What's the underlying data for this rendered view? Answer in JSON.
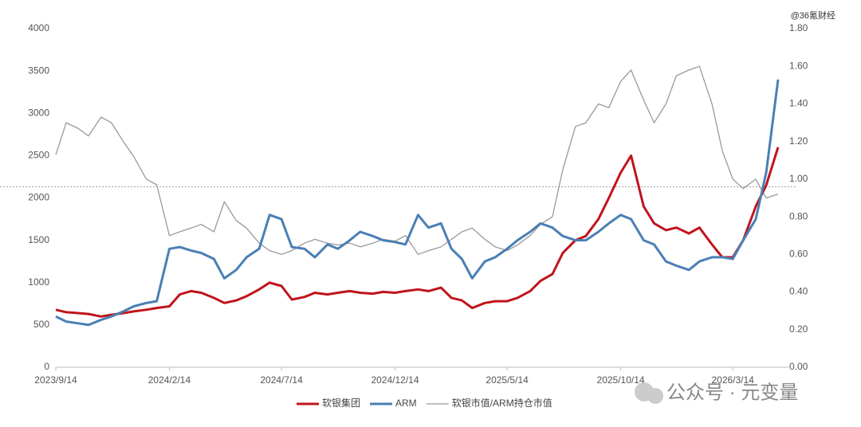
{
  "chart_data": {
    "type": "line",
    "x": [
      "2023/9/14",
      "2023/9/28",
      "2023/10/14",
      "2023/10/28",
      "2023/11/14",
      "2023/11/28",
      "2023/12/14",
      "2023/12/28",
      "2024/1/14",
      "2024/1/28",
      "2024/2/14",
      "2024/2/28",
      "2024/3/14",
      "2024/3/28",
      "2024/4/14",
      "2024/4/28",
      "2024/5/14",
      "2024/5/28",
      "2024/6/14",
      "2024/6/28",
      "2024/7/14",
      "2024/7/28",
      "2024/8/14",
      "2024/8/28",
      "2024/9/14",
      "2024/9/28",
      "2024/10/14",
      "2024/10/28",
      "2024/11/14",
      "2024/11/28",
      "2024/12/14",
      "2024/12/28",
      "2025/1/14",
      "2025/1/28",
      "2025/2/14",
      "2025/2/28",
      "2025/3/14",
      "2025/3/28",
      "2025/4/14",
      "2025/4/28",
      "2025/5/14",
      "2025/5/28",
      "2025/6/14",
      "2025/6/28",
      "2025/7/14",
      "2025/7/28",
      "2025/8/14",
      "2025/8/28",
      "2025/9/14",
      "2025/9/28",
      "2025/10/14",
      "2025/10/28",
      "2025/11/14",
      "2025/11/28",
      "2025/12/14",
      "2025/12/28",
      "2026/1/14",
      "2026/1/28",
      "2026/2/14",
      "2026/2/28",
      "2026/3/14",
      "2026/3/28",
      "2026/4/14",
      "2026/4/28",
      "2026/5/14"
    ],
    "xlim": [
      "2023/9/14",
      "2026/5/28"
    ],
    "xticks": [
      "2023/9/14",
      "2024/2/14",
      "2024/7/14",
      "2024/12/14",
      "2025/5/14",
      "2025/10/14",
      "2026/3/14"
    ],
    "ylim": [
      0,
      4000
    ],
    "yticks": [
      0,
      500,
      1000,
      1500,
      2000,
      2500,
      3000,
      3500,
      4000
    ],
    "y2lim": [
      0,
      1.8
    ],
    "y2ticks": [
      {
        "value": 0,
        "label": "0.00"
      },
      {
        "value": 0.2,
        "label": "0.20"
      },
      {
        "value": 0.4,
        "label": "0.40"
      },
      {
        "value": 0.6,
        "label": "0.60"
      },
      {
        "value": 0.8,
        "label": "0.80"
      },
      {
        "value": 1,
        "label": "1.00"
      },
      {
        "value": 1.2,
        "label": "1.20"
      },
      {
        "value": 1.4,
        "label": "1.40"
      },
      {
        "value": 1.6,
        "label": "1.60"
      },
      {
        "value": 1.8,
        "label": "1.80"
      }
    ],
    "reference_line": {
      "axis": "y2",
      "value": 0.96,
      "color": "#999999"
    },
    "series": [
      {
        "name": "软银集团",
        "color": "#c0141c",
        "width": 3,
        "values": [
          680,
          650,
          640,
          630,
          600,
          620,
          640,
          660,
          680,
          700,
          720,
          860,
          900,
          880,
          820,
          760,
          790,
          840,
          920,
          1000,
          960,
          800,
          830,
          880,
          860,
          880,
          900,
          880,
          870,
          890,
          880,
          900,
          920,
          900,
          940,
          820,
          790,
          700,
          760,
          780,
          780,
          820,
          900,
          1020,
          1100,
          1350,
          1500,
          1550,
          1750,
          2000,
          2300,
          2500,
          1900,
          1700,
          1620,
          1650,
          1580,
          1650,
          1450,
          1300,
          1300,
          1500,
          1900,
          2150,
          2600
        ]
      },
      {
        "name": "ARM",
        "color": "#4a7fb5",
        "width": 3,
        "values": [
          600,
          540,
          520,
          500,
          560,
          600,
          660,
          720,
          760,
          780,
          1400,
          1420,
          1380,
          1350,
          1280,
          1050,
          1150,
          1300,
          1400,
          1800,
          1750,
          1420,
          1400,
          1300,
          1450,
          1400,
          1500,
          1600,
          1550,
          1500,
          1480,
          1450,
          1800,
          1650,
          1700,
          1400,
          1280,
          1050,
          1250,
          1300,
          1400,
          1500,
          1600,
          1700,
          1650,
          1550,
          1500,
          1500,
          1600,
          1700,
          1800,
          1750,
          1500,
          1450,
          1250,
          1200,
          1150,
          1250,
          1300,
          1300,
          1280,
          1500,
          1750,
          2300,
          3400
        ]
      },
      {
        "name": "软银市值/ARM持仓市值",
        "color": "#999999",
        "width": 1.3,
        "axis": "y2",
        "values": [
          1.13,
          1.3,
          1.27,
          1.23,
          1.33,
          1.3,
          1.2,
          1.12,
          1.0,
          0.97,
          0.7,
          0.72,
          0.74,
          0.76,
          0.72,
          0.88,
          0.78,
          0.74,
          0.66,
          0.62,
          0.6,
          0.62,
          0.66,
          0.68,
          0.66,
          0.65,
          0.66,
          0.64,
          0.66,
          0.68,
          0.67,
          0.7,
          0.6,
          0.62,
          0.64,
          0.68,
          0.72,
          0.74,
          0.68,
          0.64,
          0.62,
          0.65,
          0.7,
          0.76,
          0.8,
          1.05,
          1.28,
          1.3,
          1.4,
          1.38,
          1.52,
          1.58,
          1.42,
          1.3,
          1.4,
          1.55,
          1.58,
          1.6,
          1.4,
          1.15,
          1.0,
          0.95,
          1.0,
          0.9,
          0.92
        ]
      }
    ],
    "watermark": "@36氪财经",
    "source_badge": "公众号 · 元变量"
  }
}
